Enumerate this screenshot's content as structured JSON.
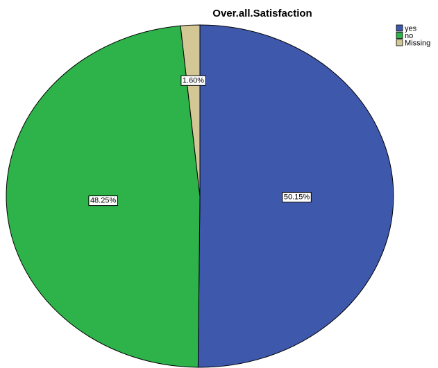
{
  "chart_data": {
    "type": "pie",
    "title": "Over.all.Satisfaction",
    "categories": [
      "yes",
      "no",
      "Missing"
    ],
    "values": [
      50.15,
      48.25,
      1.6
    ],
    "labels": [
      "50.15%",
      "48.25%",
      "1.60%"
    ],
    "colors": [
      "#3E58AC",
      "#2DB34A",
      "#D2C795"
    ],
    "legend": {
      "position": "top-right",
      "entries": [
        "yes",
        "no",
        "Missing"
      ]
    },
    "start_angle": "12 o'clock",
    "direction": "clockwise"
  }
}
